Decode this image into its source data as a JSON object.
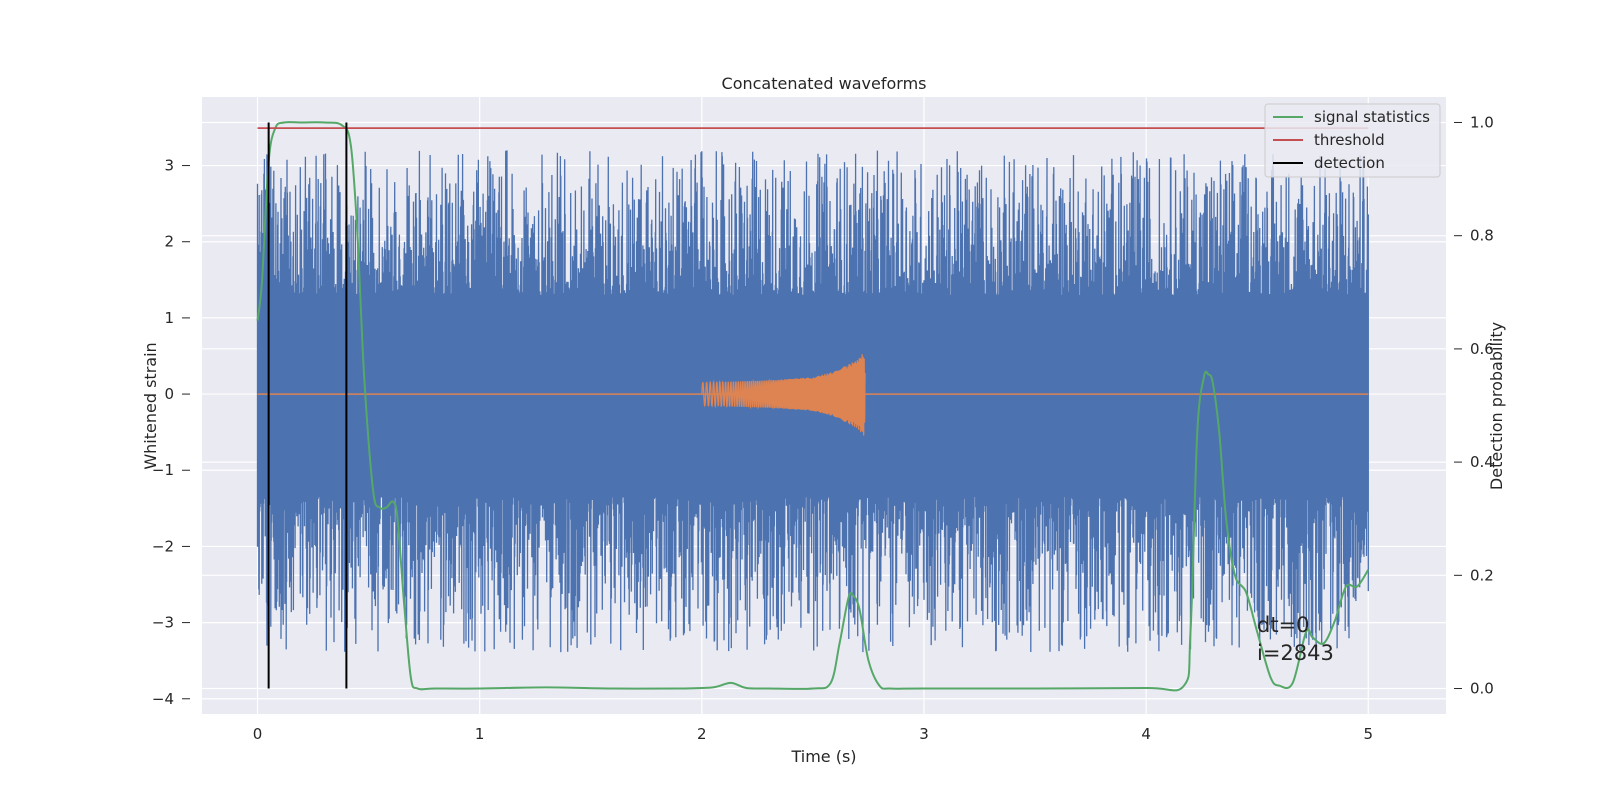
{
  "chart_data": {
    "type": "line",
    "title": "Concatenated waveforms",
    "xlabel": "Time (s)",
    "ylabel": "Whitened strain",
    "y2label": "Detection probability",
    "xlim": [
      -0.25,
      5.35
    ],
    "ylim": [
      -4.2,
      3.9
    ],
    "y2lim": [
      -0.045,
      1.045
    ],
    "x_ticks": [
      0,
      1,
      2,
      3,
      4,
      5
    ],
    "y_ticks": [
      -4,
      -3,
      -2,
      -1,
      0,
      1,
      2,
      3
    ],
    "y2_ticks": [
      0.0,
      0.2,
      0.4,
      0.6,
      0.8,
      1.0
    ],
    "x_tick_labels": [
      "0",
      "1",
      "2",
      "3",
      "4",
      "5"
    ],
    "y_tick_labels": [
      "−4",
      "−3",
      "−2",
      "−1",
      "0",
      "1",
      "2",
      "3"
    ],
    "y2_tick_labels": [
      "0.0",
      "0.2",
      "0.4",
      "0.6",
      "0.8",
      "1.0"
    ],
    "grid": true,
    "legend_position": "top-right",
    "colors": {
      "background": "#eaeaf2",
      "grid": "#ffffff",
      "strain": "#4c72b0",
      "waveform": "#dd8452",
      "signal_statistics": "#55a868",
      "threshold": "#c44e52",
      "detection": "#000000"
    },
    "series": [
      {
        "name": "",
        "axis": "left",
        "kind": "noise",
        "x_range": [
          0,
          5
        ],
        "typical_range": [
          -1.35,
          1.3
        ],
        "extreme_range": [
          -3.9,
          3.2
        ],
        "color": "#4c72b0"
      },
      {
        "name": "",
        "axis": "left",
        "kind": "chirp",
        "x": [
          0,
          2.0,
          2.0,
          2.1,
          2.3,
          2.5,
          2.6,
          2.7,
          2.73,
          2.74,
          5
        ],
        "amplitude": [
          0,
          0,
          0.15,
          0.16,
          0.18,
          0.22,
          0.3,
          0.45,
          0.55,
          0,
          0
        ],
        "color": "#dd8452"
      },
      {
        "name": "signal statistics",
        "axis": "right",
        "x": [
          0,
          0.02,
          0.05,
          0.08,
          0.12,
          0.2,
          0.3,
          0.38,
          0.42,
          0.45,
          0.48,
          0.52,
          0.55,
          0.58,
          0.61,
          0.63,
          0.66,
          0.69,
          0.72,
          0.8,
          1.0,
          1.3,
          1.6,
          1.9,
          2.05,
          2.13,
          2.2,
          2.3,
          2.5,
          2.58,
          2.62,
          2.66,
          2.68,
          2.71,
          2.75,
          2.8,
          2.85,
          3.0,
          3.5,
          4.0,
          4.17,
          4.2,
          4.23,
          4.26,
          4.28,
          4.3,
          4.33,
          4.36,
          4.4,
          4.45,
          4.5,
          4.56,
          4.6,
          4.66,
          4.72,
          4.75,
          4.8,
          4.85,
          4.9,
          4.95,
          5.0
        ],
        "y": [
          0.65,
          0.72,
          0.93,
          0.99,
          1.0,
          1.0,
          1.0,
          0.995,
          0.96,
          0.8,
          0.55,
          0.35,
          0.32,
          0.32,
          0.33,
          0.3,
          0.15,
          0.02,
          0.0,
          0.0,
          0.0,
          0.002,
          0.0,
          0.0,
          0.002,
          0.01,
          0.001,
          0.0,
          0.0,
          0.01,
          0.08,
          0.16,
          0.165,
          0.14,
          0.05,
          0.005,
          0.0,
          0.0,
          0.0,
          0.001,
          0.005,
          0.1,
          0.45,
          0.55,
          0.555,
          0.54,
          0.45,
          0.3,
          0.2,
          0.17,
          0.1,
          0.02,
          0.005,
          0.01,
          0.1,
          0.09,
          0.08,
          0.12,
          0.18,
          0.18,
          0.21
        ],
        "color": "#55a868"
      },
      {
        "name": "threshold",
        "axis": "right",
        "x": [
          0,
          5
        ],
        "y": [
          0.99,
          0.99
        ],
        "color": "#c44e52"
      },
      {
        "name": "detection",
        "axis": "right",
        "kind": "vlines",
        "x": [
          0.05,
          0.4
        ],
        "y_range": [
          0.0,
          1.0
        ],
        "color": "#000000"
      }
    ],
    "annotations": [
      "dt=0",
      "i=2843"
    ]
  }
}
